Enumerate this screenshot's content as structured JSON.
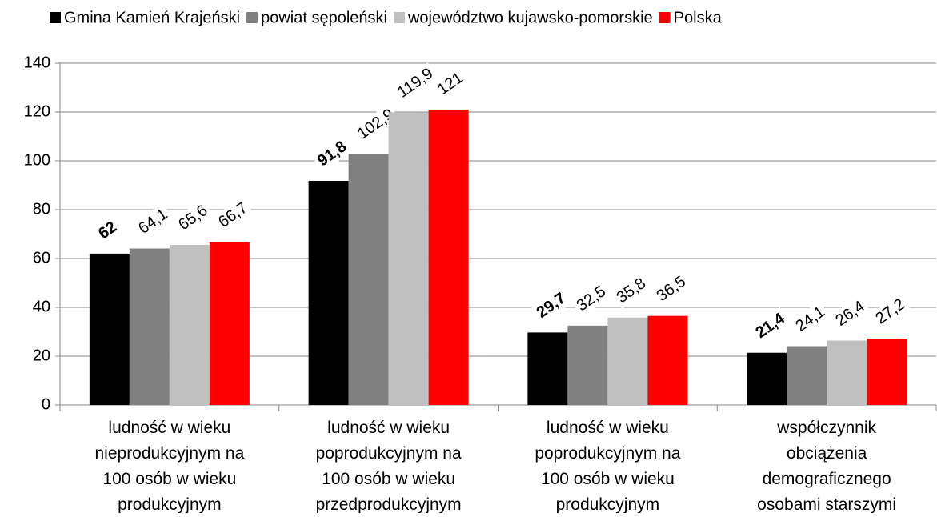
{
  "chart_data": {
    "type": "bar",
    "categories": [
      "ludność w wieku\nnieprodukcyjnym na\n100 osób w wieku\nprodukcyjnym",
      "ludność w wieku\npoprodukcyjnym na\n100 osób w wieku\nprzedprodukcyjnym",
      "ludność w wieku\npoprodukcyjnym na\n100 osób w wieku\nprodukcyjnym",
      "współczynnik\nobciążenia\ndemograficznego\nosobami starszymi"
    ],
    "series": [
      {
        "name": "Gmina Kamień Krajeński",
        "color": "#000000",
        "values": [
          62,
          91.8,
          29.7,
          21.4
        ],
        "value_labels": [
          "62",
          "91,8",
          "29,7",
          "21,4"
        ]
      },
      {
        "name": "powiat sępoleński",
        "color": "#808080",
        "values": [
          64.1,
          102.9,
          32.5,
          24.1
        ],
        "value_labels": [
          "64,1",
          "102,9",
          "32,5",
          "24,1"
        ]
      },
      {
        "name": "województwo kujawsko-pomorskie",
        "color": "#c0c0c0",
        "values": [
          65.6,
          119.9,
          35.8,
          26.4
        ],
        "value_labels": [
          "65,6",
          "119,9",
          "35,8",
          "26,4"
        ]
      },
      {
        "name": "Polska",
        "color": "#ff0000",
        "values": [
          66.7,
          121,
          36.5,
          27.2
        ],
        "value_labels": [
          "66,7",
          "121",
          "36,5",
          "27,2"
        ]
      }
    ],
    "ylim": [
      0,
      140
    ],
    "yticks": [
      0,
      20,
      40,
      60,
      80,
      100,
      120,
      140
    ],
    "grid": true,
    "legend": "top"
  }
}
